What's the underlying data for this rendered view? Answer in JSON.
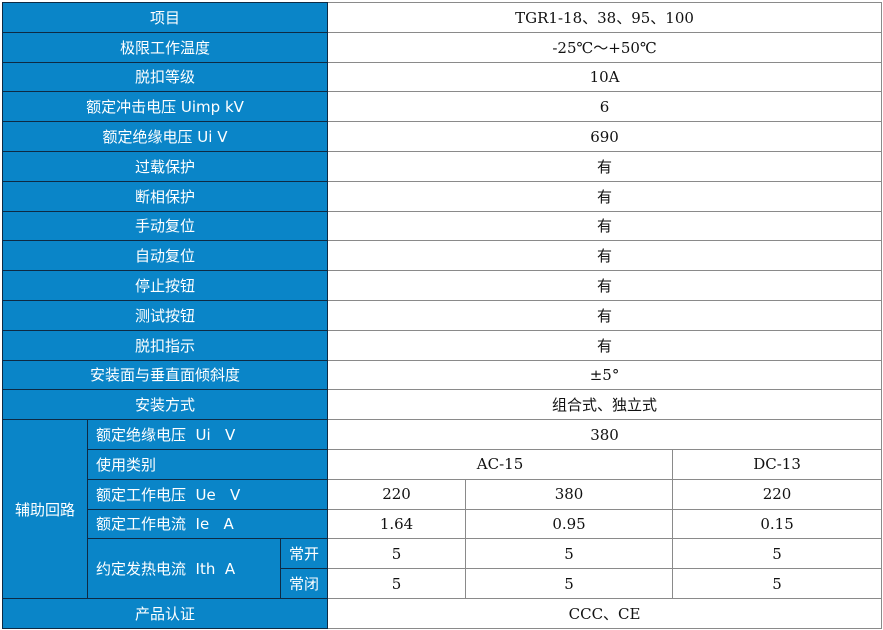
{
  "header_color": "#0a85c8",
  "rows": [
    {
      "label": "项目",
      "value": "TGR1-18、38、95、100"
    },
    {
      "label": "极限工作温度",
      "value": "-25℃～+50℃"
    },
    {
      "label": "脱扣等级",
      "value": "10A"
    },
    {
      "label": "额定冲击电压  Uimp  kV",
      "value": "6"
    },
    {
      "label": "额定绝缘电压  Ui    V",
      "value": "690"
    },
    {
      "label": "过载保护",
      "value": "有"
    },
    {
      "label": "断相保护",
      "value": "有"
    },
    {
      "label": "手动复位",
      "value": "有"
    },
    {
      "label": "自动复位",
      "value": "有"
    },
    {
      "label": "停止按钮",
      "value": "有"
    },
    {
      "label": "测试按钮",
      "value": "有"
    },
    {
      "label": "脱扣指示",
      "value": "有"
    },
    {
      "label": "安装面与垂直面倾斜度",
      "value": "±5°"
    },
    {
      "label": "安装方式",
      "value": "组合式、独立式"
    }
  ],
  "aux": {
    "group": "辅助回路",
    "insulation": {
      "label": "额定绝缘电压  Ui   V",
      "value": "380"
    },
    "category": {
      "label": "使用类别",
      "ac": "AC-15",
      "dc": "DC-13"
    },
    "voltage": {
      "label": "额定工作电压  Ue   V",
      "values": [
        "220",
        "380",
        "220"
      ]
    },
    "current": {
      "label": "额定工作电流  Ie   A",
      "values": [
        "1.64",
        "0.95",
        "0.15"
      ]
    },
    "thermal": {
      "label": "约定发热电流  Ith  A",
      "no": "常开",
      "nc": "常闭",
      "no_values": [
        "5",
        "5",
        "5"
      ],
      "nc_values": [
        "5",
        "5",
        "5"
      ]
    }
  },
  "cert": {
    "label": "产品认证",
    "value": "CCC、CE"
  }
}
